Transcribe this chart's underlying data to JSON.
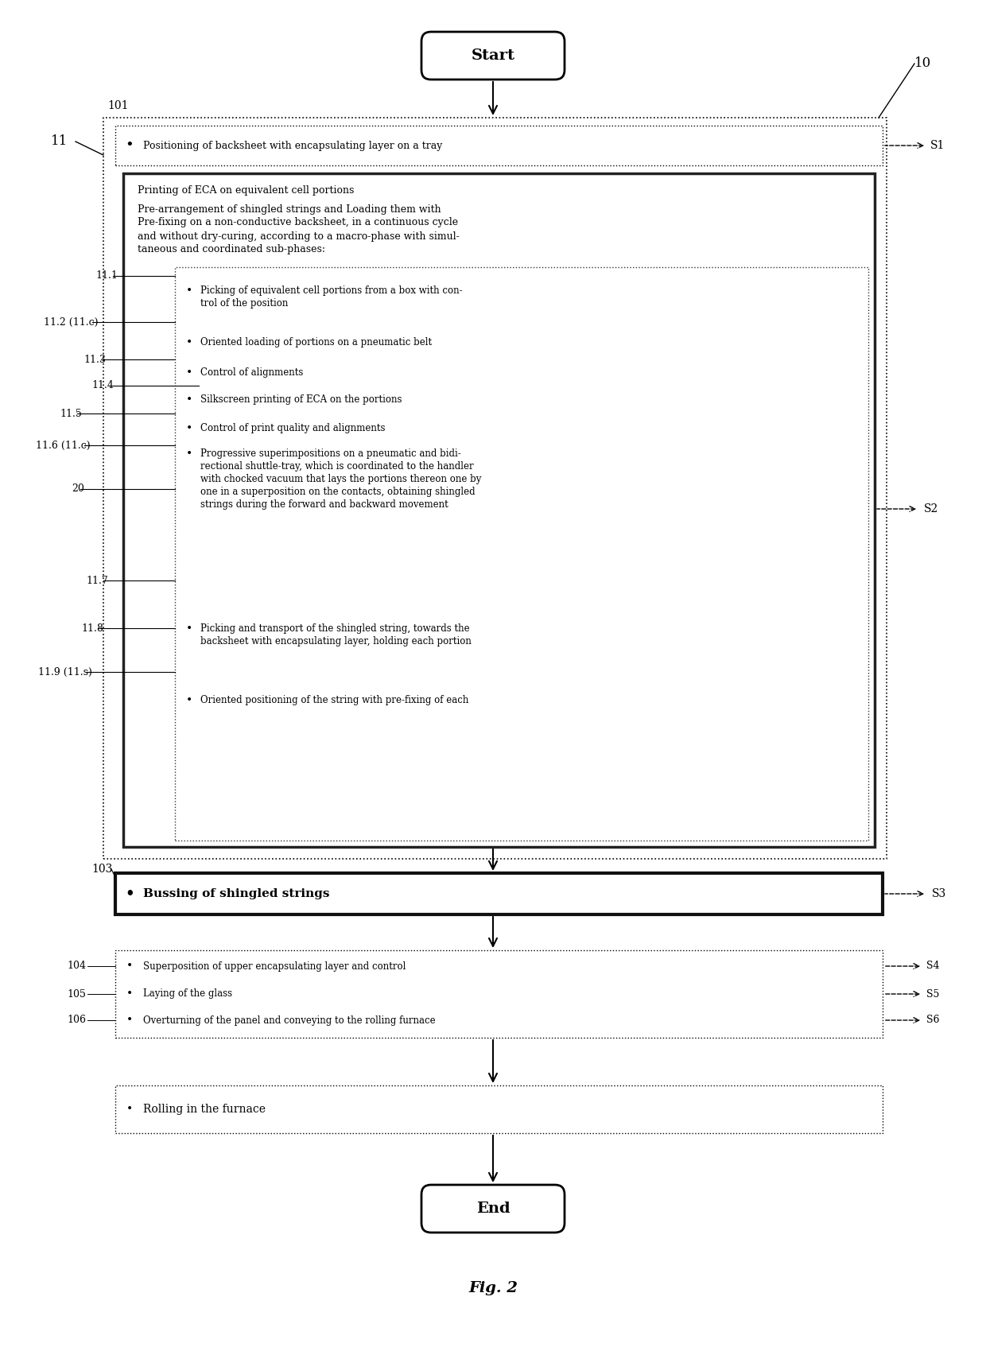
{
  "fig_width": 12.4,
  "fig_height": 17.04,
  "bg_color": "#ffffff",
  "title": "Fig. 2",
  "text_start": "Start",
  "text_end": "End",
  "label_10": "10",
  "label_11": "11",
  "label_101": "101",
  "label_11_1": "11.1",
  "label_11_2": "11.2 (11.c)",
  "label_11_3": "11.3",
  "label_11_4": "11.4",
  "label_11_5": "11.5",
  "label_11_6": "11.6 (11.c)",
  "label_20": "20",
  "label_11_7": "11.7",
  "label_11_8": "11.8",
  "label_11_9": "11.9 (11.s)",
  "label_103": "103",
  "label_104": "104",
  "label_105": "105",
  "label_106": "106",
  "s1": "S1",
  "s2": "S2",
  "s3": "S3",
  "s4": "S4",
  "s5": "S5",
  "s6": "S6",
  "step1_text": "Positioning of backsheet with encapsulating layer on a tray",
  "big_box_title1": "Printing of ECA on equivalent cell portions",
  "big_box_title2": "Pre-arrangement of shingled strings and Loading them with\nPre-fixing on a non-conductive backsheet, in a continuous cycle\nand without dry-curing, according to a macro-phase with simul-\ntaneous and coordinated sub-phases:",
  "sub1": "Picking of equivalent cell portions from a box with con-\ntrol of the position",
  "sub2": "Oriented loading of portions on a pneumatic belt",
  "sub3": "Control of alignments",
  "sub4": "Silkscreen printing of ECA on the portions",
  "sub5": "Control of print quality and alignments",
  "sub6": "Progressive superimpositions on a pneumatic and bidi-\nrectional shuttle-tray, which is coordinated to the handler\nwith chocked vacuum that lays the portions thereon one by\none in a superposition on the contacts, obtaining shingled\nstrings during the forward and backward movement",
  "sub7": "Picking and transport of the shingled string, towards the\nbacksheet with encapsulating layer, holding each portion",
  "sub8": "Oriented positioning of the string with pre-fixing of each",
  "bussing_text": "Bussing of shingled strings",
  "step4_text": "Superposition of upper encapsulating layer and control",
  "step5_text": "Laying of the glass",
  "step6_text": "Overturning of the panel and conveying to the rolling furnace",
  "furnace_text": "Rolling in the furnace"
}
